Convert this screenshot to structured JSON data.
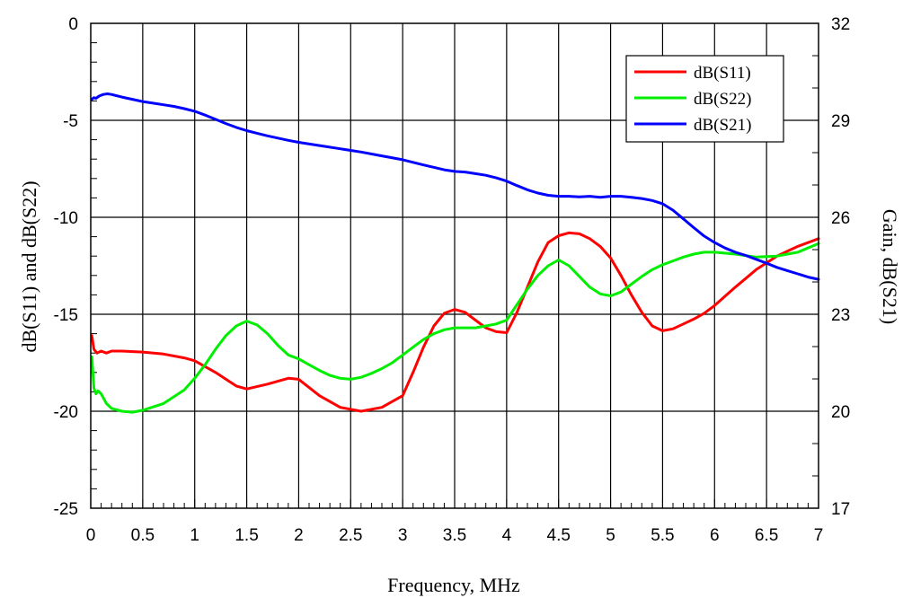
{
  "chart_data": {
    "type": "line",
    "xlabel": "Frequency, MHz",
    "ylabel_left": "dB(S11) and dB(S22)",
    "ylabel_right": "Gain, dB(S21)",
    "xlim": [
      0,
      7
    ],
    "ylim_left": [
      -25,
      0
    ],
    "ylim_right": [
      17,
      32
    ],
    "x_ticks": [
      "0",
      "0.5",
      "1",
      "1.5",
      "2",
      "2.5",
      "3",
      "3.5",
      "4",
      "4.5",
      "5",
      "5.5",
      "6",
      "6.5",
      "7"
    ],
    "y_left_ticks": [
      "0",
      "-5",
      "-10",
      "-15",
      "-20",
      "-25"
    ],
    "y_right_ticks": [
      "32",
      "29",
      "26",
      "23",
      "20",
      "17"
    ],
    "grid": true,
    "legend_position": "top-right",
    "series": [
      {
        "name": "dB(S11)",
        "axis": "left",
        "color": "#ff0000",
        "points": [
          [
            0.01,
            -16.1
          ],
          [
            0.03,
            -16.8
          ],
          [
            0.06,
            -17.0
          ],
          [
            0.1,
            -16.9
          ],
          [
            0.15,
            -17.0
          ],
          [
            0.2,
            -16.9
          ],
          [
            0.3,
            -16.9
          ],
          [
            0.5,
            -16.95
          ],
          [
            0.7,
            -17.05
          ],
          [
            0.9,
            -17.25
          ],
          [
            1.0,
            -17.4
          ],
          [
            1.2,
            -18.0
          ],
          [
            1.4,
            -18.7
          ],
          [
            1.5,
            -18.85
          ],
          [
            1.7,
            -18.6
          ],
          [
            1.9,
            -18.3
          ],
          [
            2.0,
            -18.35
          ],
          [
            2.2,
            -19.2
          ],
          [
            2.4,
            -19.8
          ],
          [
            2.6,
            -20.0
          ],
          [
            2.8,
            -19.8
          ],
          [
            3.0,
            -19.2
          ],
          [
            3.1,
            -18.0
          ],
          [
            3.2,
            -16.7
          ],
          [
            3.3,
            -15.6
          ],
          [
            3.4,
            -14.95
          ],
          [
            3.5,
            -14.75
          ],
          [
            3.6,
            -14.9
          ],
          [
            3.7,
            -15.3
          ],
          [
            3.8,
            -15.7
          ],
          [
            3.9,
            -15.9
          ],
          [
            4.0,
            -15.95
          ],
          [
            4.1,
            -14.9
          ],
          [
            4.2,
            -13.6
          ],
          [
            4.3,
            -12.3
          ],
          [
            4.4,
            -11.3
          ],
          [
            4.5,
            -10.95
          ],
          [
            4.6,
            -10.8
          ],
          [
            4.7,
            -10.85
          ],
          [
            4.8,
            -11.1
          ],
          [
            4.9,
            -11.5
          ],
          [
            5.0,
            -12.1
          ],
          [
            5.1,
            -13.0
          ],
          [
            5.2,
            -14.0
          ],
          [
            5.3,
            -14.9
          ],
          [
            5.4,
            -15.6
          ],
          [
            5.5,
            -15.85
          ],
          [
            5.6,
            -15.75
          ],
          [
            5.7,
            -15.5
          ],
          [
            5.8,
            -15.25
          ],
          [
            5.9,
            -14.95
          ],
          [
            6.0,
            -14.55
          ],
          [
            6.2,
            -13.6
          ],
          [
            6.4,
            -12.7
          ],
          [
            6.6,
            -12.0
          ],
          [
            6.8,
            -11.5
          ],
          [
            7.0,
            -11.1
          ]
        ]
      },
      {
        "name": "dB(S22)",
        "axis": "left",
        "color": "#00ee00",
        "points": [
          [
            0.01,
            -17.2
          ],
          [
            0.03,
            -18.8
          ],
          [
            0.05,
            -19.1
          ],
          [
            0.07,
            -18.95
          ],
          [
            0.1,
            -19.1
          ],
          [
            0.15,
            -19.6
          ],
          [
            0.2,
            -19.85
          ],
          [
            0.3,
            -20.0
          ],
          [
            0.4,
            -20.05
          ],
          [
            0.5,
            -19.95
          ],
          [
            0.7,
            -19.6
          ],
          [
            0.9,
            -18.9
          ],
          [
            1.0,
            -18.3
          ],
          [
            1.1,
            -17.6
          ],
          [
            1.2,
            -16.8
          ],
          [
            1.3,
            -16.1
          ],
          [
            1.4,
            -15.6
          ],
          [
            1.5,
            -15.35
          ],
          [
            1.6,
            -15.55
          ],
          [
            1.7,
            -16.0
          ],
          [
            1.8,
            -16.6
          ],
          [
            1.9,
            -17.1
          ],
          [
            2.0,
            -17.3
          ],
          [
            2.1,
            -17.6
          ],
          [
            2.2,
            -17.9
          ],
          [
            2.3,
            -18.15
          ],
          [
            2.4,
            -18.3
          ],
          [
            2.5,
            -18.35
          ],
          [
            2.6,
            -18.25
          ],
          [
            2.7,
            -18.05
          ],
          [
            2.8,
            -17.8
          ],
          [
            2.9,
            -17.5
          ],
          [
            3.0,
            -17.1
          ],
          [
            3.1,
            -16.7
          ],
          [
            3.2,
            -16.3
          ],
          [
            3.3,
            -16.0
          ],
          [
            3.4,
            -15.8
          ],
          [
            3.5,
            -15.7
          ],
          [
            3.6,
            -15.7
          ],
          [
            3.7,
            -15.7
          ],
          [
            3.8,
            -15.6
          ],
          [
            3.9,
            -15.5
          ],
          [
            4.0,
            -15.3
          ],
          [
            4.1,
            -14.5
          ],
          [
            4.2,
            -13.7
          ],
          [
            4.3,
            -13.0
          ],
          [
            4.4,
            -12.5
          ],
          [
            4.5,
            -12.2
          ],
          [
            4.6,
            -12.5
          ],
          [
            4.7,
            -13.05
          ],
          [
            4.8,
            -13.6
          ],
          [
            4.9,
            -13.95
          ],
          [
            5.0,
            -14.05
          ],
          [
            5.1,
            -13.85
          ],
          [
            5.2,
            -13.45
          ],
          [
            5.3,
            -13.05
          ],
          [
            5.4,
            -12.7
          ],
          [
            5.5,
            -12.45
          ],
          [
            5.6,
            -12.25
          ],
          [
            5.7,
            -12.05
          ],
          [
            5.8,
            -11.9
          ],
          [
            5.9,
            -11.8
          ],
          [
            6.0,
            -11.8
          ],
          [
            6.2,
            -11.9
          ],
          [
            6.4,
            -12.05
          ],
          [
            6.6,
            -12.0
          ],
          [
            6.8,
            -11.8
          ],
          [
            7.0,
            -11.35
          ]
        ]
      },
      {
        "name": "dB(S21)",
        "axis": "right",
        "color": "#0000ff",
        "points": [
          [
            0.01,
            29.65
          ],
          [
            0.03,
            29.7
          ],
          [
            0.05,
            29.68
          ],
          [
            0.08,
            29.75
          ],
          [
            0.12,
            29.8
          ],
          [
            0.16,
            29.82
          ],
          [
            0.2,
            29.8
          ],
          [
            0.3,
            29.72
          ],
          [
            0.4,
            29.65
          ],
          [
            0.5,
            29.58
          ],
          [
            0.6,
            29.53
          ],
          [
            0.7,
            29.48
          ],
          [
            0.8,
            29.43
          ],
          [
            0.9,
            29.36
          ],
          [
            1.0,
            29.28
          ],
          [
            1.1,
            29.16
          ],
          [
            1.2,
            29.03
          ],
          [
            1.3,
            28.9
          ],
          [
            1.4,
            28.78
          ],
          [
            1.5,
            28.68
          ],
          [
            1.6,
            28.6
          ],
          [
            1.7,
            28.52
          ],
          [
            1.8,
            28.45
          ],
          [
            1.9,
            28.38
          ],
          [
            2.0,
            28.32
          ],
          [
            2.2,
            28.22
          ],
          [
            2.4,
            28.12
          ],
          [
            2.6,
            28.02
          ],
          [
            2.8,
            27.9
          ],
          [
            3.0,
            27.78
          ],
          [
            3.2,
            27.62
          ],
          [
            3.4,
            27.47
          ],
          [
            3.5,
            27.42
          ],
          [
            3.6,
            27.4
          ],
          [
            3.7,
            27.35
          ],
          [
            3.8,
            27.3
          ],
          [
            3.9,
            27.22
          ],
          [
            4.0,
            27.12
          ],
          [
            4.1,
            26.98
          ],
          [
            4.2,
            26.85
          ],
          [
            4.3,
            26.75
          ],
          [
            4.4,
            26.68
          ],
          [
            4.5,
            26.65
          ],
          [
            4.6,
            26.65
          ],
          [
            4.7,
            26.63
          ],
          [
            4.8,
            26.65
          ],
          [
            4.9,
            26.62
          ],
          [
            5.0,
            26.65
          ],
          [
            5.1,
            26.65
          ],
          [
            5.2,
            26.62
          ],
          [
            5.3,
            26.58
          ],
          [
            5.4,
            26.52
          ],
          [
            5.5,
            26.42
          ],
          [
            5.6,
            26.22
          ],
          [
            5.7,
            25.95
          ],
          [
            5.8,
            25.68
          ],
          [
            5.9,
            25.42
          ],
          [
            6.0,
            25.22
          ],
          [
            6.1,
            25.05
          ],
          [
            6.2,
            24.92
          ],
          [
            6.3,
            24.82
          ],
          [
            6.4,
            24.7
          ],
          [
            6.5,
            24.58
          ],
          [
            6.6,
            24.45
          ],
          [
            6.7,
            24.35
          ],
          [
            6.8,
            24.25
          ],
          [
            6.9,
            24.15
          ],
          [
            7.0,
            24.08
          ]
        ]
      }
    ]
  }
}
